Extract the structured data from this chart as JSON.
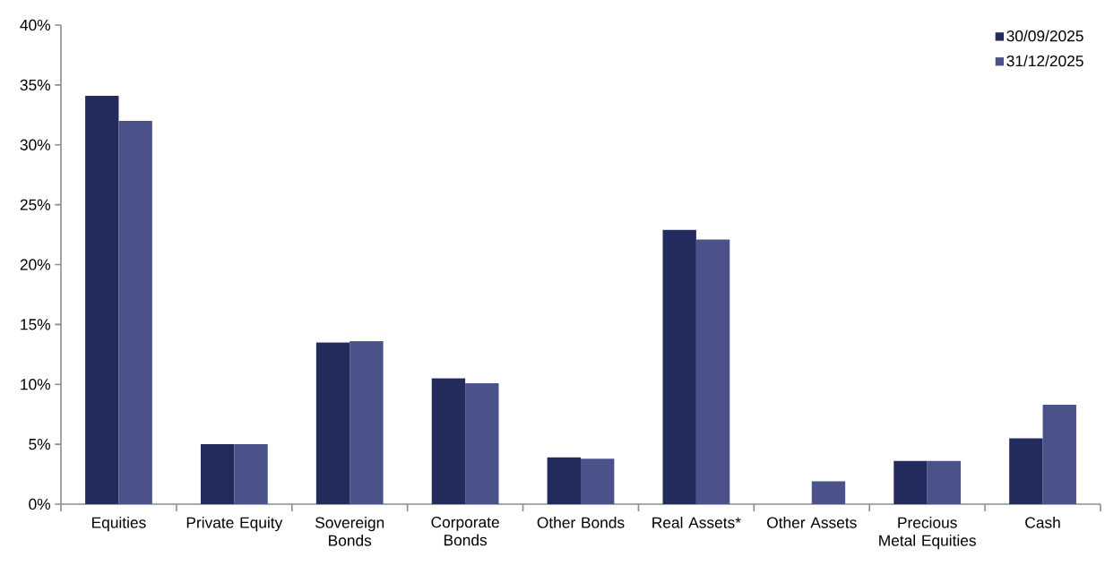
{
  "chart_data": {
    "type": "bar",
    "categories": [
      "Equities",
      "Private Equity",
      "Sovereign Bonds",
      "Corporate Bonds",
      "Other Bonds",
      "Real Assets*",
      "Other Assets",
      "Precious Metal Equities",
      "Cash"
    ],
    "series": [
      {
        "name": "30/09/2025",
        "color": "#232a5c",
        "values": [
          34.1,
          5.0,
          13.5,
          10.5,
          3.9,
          22.9,
          null,
          3.6,
          5.5
        ]
      },
      {
        "name": "31/12/2025",
        "color": "#4b5189",
        "values": [
          32.0,
          5.0,
          13.6,
          10.1,
          3.8,
          22.1,
          1.9,
          3.6,
          8.3
        ]
      }
    ],
    "ylim": [
      0,
      40
    ],
    "yticks": [
      {
        "value": 0,
        "label": "0%"
      },
      {
        "value": 5,
        "label": "5%"
      },
      {
        "value": 10,
        "label": "10%"
      },
      {
        "value": 15,
        "label": "15%"
      },
      {
        "value": 20,
        "label": "20%"
      },
      {
        "value": 25,
        "label": "25%"
      },
      {
        "value": 30,
        "label": "30%"
      },
      {
        "value": 35,
        "label": "35%"
      },
      {
        "value": 40,
        "label": "40%"
      }
    ],
    "grid": false,
    "legend": "top right"
  }
}
